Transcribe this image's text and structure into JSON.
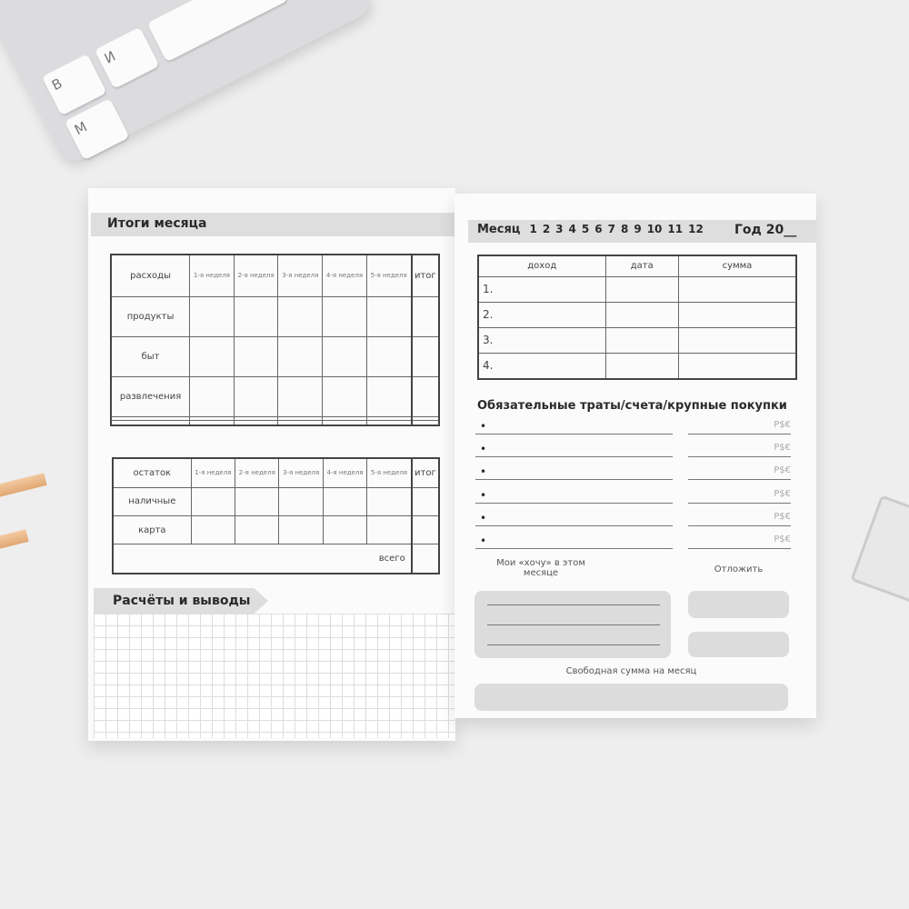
{
  "keyboard": {
    "keys": [
      "В",
      "И",
      "М"
    ]
  },
  "left": {
    "summary_title": "Итоги месяца",
    "expenses_table": {
      "header": [
        "расходы",
        "1-я неделя",
        "2-я неделя",
        "3-я неделя",
        "4-я неделя",
        "5-я неделя",
        "итог"
      ],
      "rows": [
        "продукты",
        "быт",
        "развлечения",
        "",
        ""
      ]
    },
    "balance_table": {
      "header": [
        "остаток",
        "1-я неделя",
        "2-я неделя",
        "3-я неделя",
        "4-я неделя",
        "5-я неделя",
        "итог"
      ],
      "rows": [
        "наличные",
        "карта"
      ],
      "total_label": "всего"
    },
    "notes_title": "Расчёты и выводы"
  },
  "right": {
    "month_label": "Месяц",
    "months": [
      "1",
      "2",
      "3",
      "4",
      "5",
      "6",
      "7",
      "8",
      "9",
      "10",
      "11",
      "12"
    ],
    "year_label": "Год 20__",
    "income_table": {
      "header": [
        "доход",
        "дата",
        "сумма"
      ],
      "rows": [
        "1.",
        "2.",
        "3.",
        "4."
      ]
    },
    "mandatory_title": "Обязательные траты/счета/крупные покупки",
    "currency": "P$€",
    "mandatory_rows": 6,
    "wants_label": "Мои «хочу» в этом месяце",
    "save_label": "Отложить",
    "free_sum_label": "Свободная сумма на месяц"
  }
}
